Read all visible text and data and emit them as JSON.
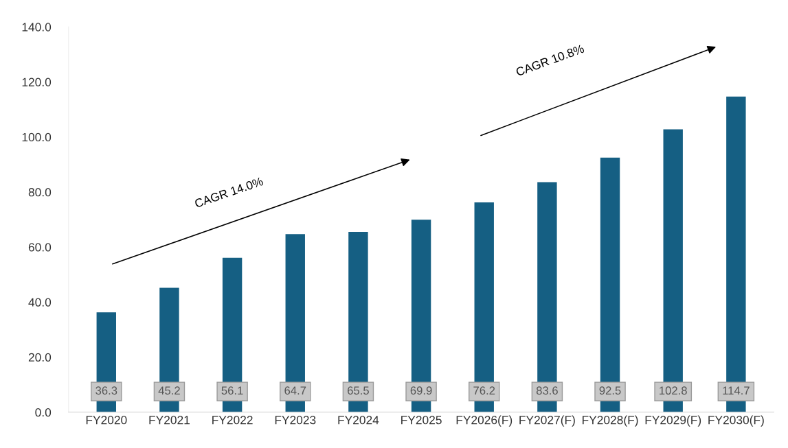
{
  "chart_data": {
    "type": "bar",
    "categories": [
      "FY2020",
      "FY2021",
      "FY2022",
      "FY2023",
      "FY2024",
      "FY2025",
      "FY2026(F)",
      "FY2027(F)",
      "FY2028(F)",
      "FY2029(F)",
      "FY2030(F)"
    ],
    "values": [
      36.3,
      45.2,
      56.1,
      64.7,
      65.5,
      69.9,
      76.2,
      83.6,
      92.5,
      102.8,
      114.7
    ],
    "color": "#155f83",
    "ylim": [
      0,
      140
    ],
    "yticks": [
      {
        "value": 0,
        "label": "0.0"
      },
      {
        "value": 20,
        "label": "20.0"
      },
      {
        "value": 40,
        "label": "40.0"
      },
      {
        "value": 60,
        "label": "60.0"
      },
      {
        "value": 80,
        "label": "80.0"
      },
      {
        "value": 100,
        "label": "100.0"
      },
      {
        "value": 120,
        "label": "120.0"
      },
      {
        "value": 140,
        "label": "140.0"
      }
    ],
    "grid": false,
    "data_labels": true,
    "annotations": [
      "CAGR 14.0%",
      "CAGR 10.8%"
    ]
  }
}
